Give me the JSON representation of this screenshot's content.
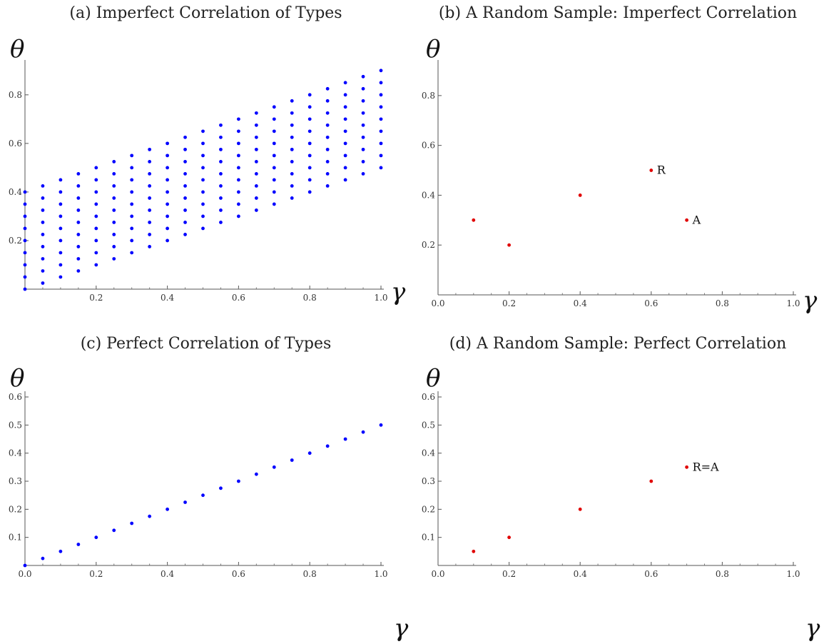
{
  "chart_data": [
    {
      "id": "a",
      "type": "scatter",
      "title": "(a) Imperfect Correlation of Types",
      "xlabel": "γ",
      "ylabel": "θ",
      "xlim": [
        0,
        1.0
      ],
      "ylim": [
        0,
        0.92
      ],
      "xticks": [
        "0.2",
        "0.4",
        "0.6",
        "0.8",
        "1.0"
      ],
      "yticks": [
        "0.2",
        "0.4",
        "0.6",
        "0.8"
      ],
      "color": "#0000ff",
      "grid": false,
      "generator": {
        "x_step": 0.05,
        "x_count": 21,
        "y_step": 0.05,
        "lower_slope": 0.5,
        "band_width": 0.4
      },
      "annotations": []
    },
    {
      "id": "b",
      "type": "scatter",
      "title": "(b) A Random Sample: Imperfect Correlation",
      "xlabel": "γ",
      "ylabel": "θ",
      "xlim": [
        0,
        1.0
      ],
      "ylim": [
        0,
        0.92
      ],
      "xticks": [
        "0.0",
        "0.2",
        "0.4",
        "0.6",
        "0.8",
        "1.0"
      ],
      "yticks": [
        "0.2",
        "0.4",
        "0.6",
        "0.8"
      ],
      "color": "#e00000",
      "grid": false,
      "points": [
        {
          "x": 0.1,
          "y": 0.3
        },
        {
          "x": 0.2,
          "y": 0.2
        },
        {
          "x": 0.4,
          "y": 0.4
        },
        {
          "x": 0.6,
          "y": 0.5
        },
        {
          "x": 0.7,
          "y": 0.3
        }
      ],
      "annotations": [
        {
          "text": "R",
          "x": 0.6,
          "y": 0.5
        },
        {
          "text": "A",
          "x": 0.7,
          "y": 0.3
        }
      ]
    },
    {
      "id": "c",
      "type": "scatter",
      "title": "(c) Perfect Correlation of Types",
      "xlabel": "γ",
      "ylabel": "θ",
      "xlim": [
        0,
        1.0
      ],
      "ylim": [
        0,
        0.6
      ],
      "xticks": [
        "0.0",
        "0.2",
        "0.4",
        "0.6",
        "0.8",
        "1.0"
      ],
      "yticks": [
        "0.1",
        "0.2",
        "0.3",
        "0.4",
        "0.5",
        "0.6"
      ],
      "color": "#0000ff",
      "grid": false,
      "points": [
        {
          "x": 0.0,
          "y": 0.0
        },
        {
          "x": 0.05,
          "y": 0.025
        },
        {
          "x": 0.1,
          "y": 0.05
        },
        {
          "x": 0.15,
          "y": 0.075
        },
        {
          "x": 0.2,
          "y": 0.1
        },
        {
          "x": 0.25,
          "y": 0.125
        },
        {
          "x": 0.3,
          "y": 0.15
        },
        {
          "x": 0.35,
          "y": 0.175
        },
        {
          "x": 0.4,
          "y": 0.2
        },
        {
          "x": 0.45,
          "y": 0.225
        },
        {
          "x": 0.5,
          "y": 0.25
        },
        {
          "x": 0.55,
          "y": 0.275
        },
        {
          "x": 0.6,
          "y": 0.3
        },
        {
          "x": 0.65,
          "y": 0.325
        },
        {
          "x": 0.7,
          "y": 0.35
        },
        {
          "x": 0.75,
          "y": 0.375
        },
        {
          "x": 0.8,
          "y": 0.4
        },
        {
          "x": 0.85,
          "y": 0.425
        },
        {
          "x": 0.9,
          "y": 0.45
        },
        {
          "x": 0.95,
          "y": 0.475
        },
        {
          "x": 1.0,
          "y": 0.5
        }
      ],
      "annotations": []
    },
    {
      "id": "d",
      "type": "scatter",
      "title": "(d) A Random Sample: Perfect Correlation",
      "xlabel": "γ",
      "ylabel": "θ",
      "xlim": [
        0,
        1.0
      ],
      "ylim": [
        0,
        0.6
      ],
      "xticks": [
        "0.0",
        "0.2",
        "0.4",
        "0.6",
        "0.8",
        "1.0"
      ],
      "yticks": [
        "0.1",
        "0.2",
        "0.3",
        "0.4",
        "0.5",
        "0.6"
      ],
      "color": "#e00000",
      "grid": false,
      "points": [
        {
          "x": 0.1,
          "y": 0.05
        },
        {
          "x": 0.2,
          "y": 0.1
        },
        {
          "x": 0.4,
          "y": 0.2
        },
        {
          "x": 0.6,
          "y": 0.3
        },
        {
          "x": 0.7,
          "y": 0.35
        }
      ],
      "annotations": [
        {
          "text": "R=A",
          "x": 0.7,
          "y": 0.35
        }
      ]
    }
  ]
}
